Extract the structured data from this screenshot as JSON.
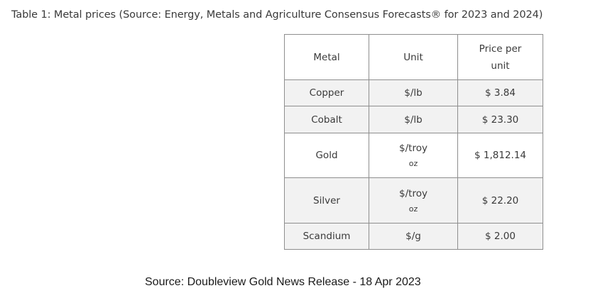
{
  "caption": "Table 1: Metal prices (Source: Energy, Metals and Agriculture Consensus Forecasts® for 2023 and 2024)",
  "table": {
    "headers": {
      "metal": "Metal",
      "unit": "Unit",
      "price_line1": "Price per",
      "price_line2": "unit"
    },
    "rows": [
      {
        "metal": "Copper",
        "unit_line1": "$/lb",
        "unit_line2": "",
        "price": "$ 3.84"
      },
      {
        "metal": "Cobalt",
        "unit_line1": "$/lb",
        "unit_line2": "",
        "price": "$ 23.30"
      },
      {
        "metal": "Gold",
        "unit_line1": "$/troy",
        "unit_line2": "oz",
        "price": "$ 1,812.14"
      },
      {
        "metal": "Silver",
        "unit_line1": "$/troy",
        "unit_line2": "oz",
        "price": "$ 22.20"
      },
      {
        "metal": "Scandium",
        "unit_line1": "$/g",
        "unit_line2": "",
        "price": "$ 2.00"
      }
    ]
  },
  "source_note": "Source: Doubleview Gold News Release - 18 Apr 2023",
  "colors": {
    "border": "#8e8e8e",
    "shaded_row": "#f2f2f2",
    "text": "#3a3a3a"
  }
}
